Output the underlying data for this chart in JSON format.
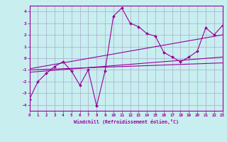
{
  "xlabel": "Windchill (Refroidissement éolien,°C)",
  "xlim": [
    0,
    23
  ],
  "ylim": [
    -4.5,
    4.5
  ],
  "yticks": [
    -4,
    -3,
    -2,
    -1,
    0,
    1,
    2,
    3,
    4
  ],
  "xticks": [
    0,
    1,
    2,
    3,
    4,
    5,
    6,
    7,
    8,
    9,
    10,
    11,
    12,
    13,
    14,
    15,
    16,
    17,
    18,
    19,
    20,
    21,
    22,
    23
  ],
  "bg_color": "#c8eef0",
  "line_color": "#990099",
  "grid_color": "#aaaacc",
  "series1": {
    "x": [
      0,
      1,
      2,
      3,
      4,
      5,
      6,
      7,
      8,
      9,
      10,
      11,
      12,
      13,
      14,
      15,
      16,
      17,
      18,
      19,
      20,
      21,
      22,
      23
    ],
    "y": [
      -3.5,
      -2.0,
      -1.3,
      -0.7,
      -0.3,
      -1.1,
      -2.3,
      -1.0,
      -4.1,
      -1.1,
      3.6,
      4.3,
      3.0,
      2.7,
      2.1,
      1.9,
      0.5,
      0.1,
      -0.3,
      0.1,
      0.6,
      2.6,
      2.0,
      2.8
    ]
  },
  "series2": {
    "x": [
      0,
      23
    ],
    "y": [
      -1.2,
      0.1
    ]
  },
  "series3": {
    "x": [
      0,
      23
    ],
    "y": [
      -0.9,
      2.0
    ]
  },
  "series4": {
    "x": [
      0,
      23
    ],
    "y": [
      -1.0,
      -0.4
    ]
  }
}
